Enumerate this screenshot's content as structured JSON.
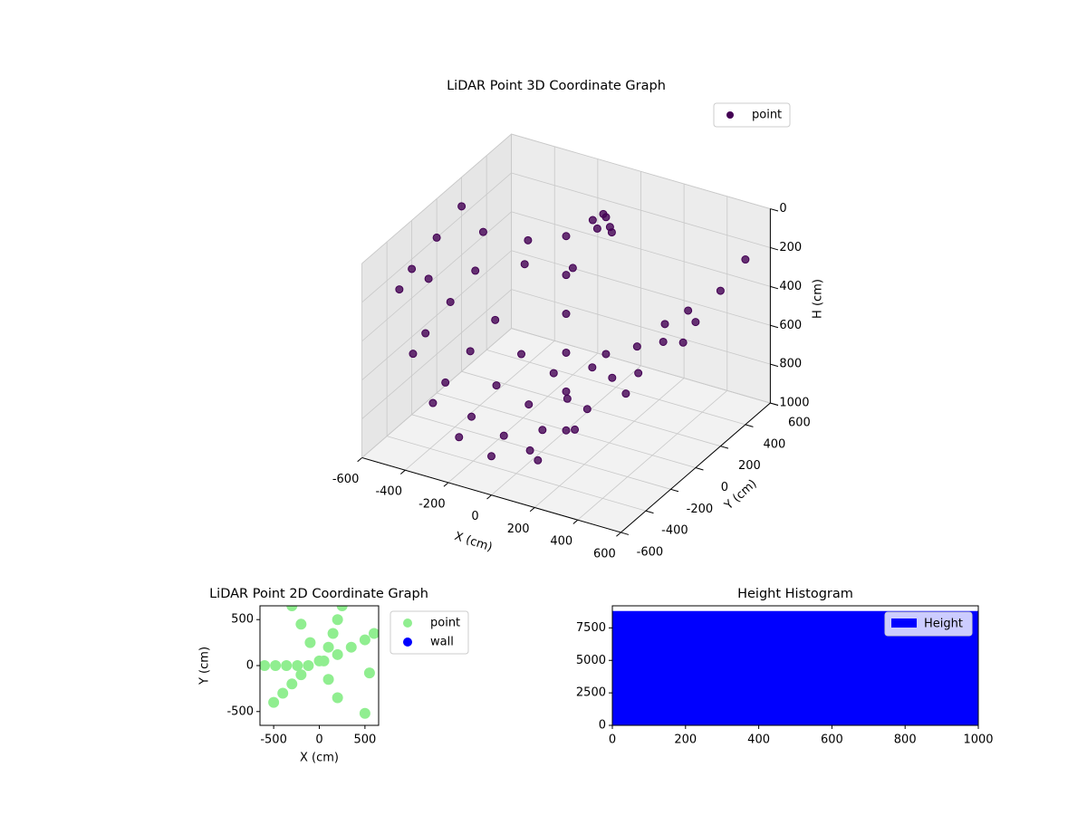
{
  "chart_data": [
    {
      "type": "scatter3d",
      "title": "LiDAR Point 3D Coordinate Graph",
      "xlabel": "X (cm)",
      "ylabel": "Y (cm)",
      "zlabel": "H (cm)",
      "xlim": [
        -600,
        600
      ],
      "ylim": [
        -600,
        600
      ],
      "zlim": [
        1000,
        0
      ],
      "xticks": [
        -600,
        -400,
        -200,
        0,
        200,
        400,
        600
      ],
      "yticks": [
        -600,
        -400,
        -200,
        0,
        200,
        400,
        600
      ],
      "zticks": [
        0,
        200,
        400,
        600,
        800,
        1000
      ],
      "grid": true,
      "legend": "upper right",
      "series": [
        {
          "name": "point",
          "color": "#440154",
          "x": [
            -600,
            -450,
            -300,
            -150,
            0,
            150,
            300,
            450,
            600,
            -600,
            -450,
            -300,
            -150,
            0,
            150,
            300,
            450,
            600,
            -600,
            -450,
            -300,
            -150,
            0,
            150,
            300,
            450,
            600,
            -600,
            -450,
            -300,
            -150,
            0,
            150,
            300,
            450,
            600,
            0,
            0,
            0,
            0,
            0,
            0,
            -50,
            0,
            50,
            -30,
            30,
            0,
            -580,
            -500,
            -350,
            -250,
            300,
            400,
            -200,
            100
          ],
          "y": [
            -300,
            -450,
            -550,
            -600,
            -600,
            -550,
            -450,
            -300,
            -100,
            -200,
            -350,
            -450,
            -500,
            -500,
            -450,
            -350,
            -200,
            0,
            0,
            -150,
            -250,
            -300,
            -300,
            -250,
            -150,
            0,
            200,
            200,
            50,
            -50,
            -100,
            -100,
            -50,
            50,
            200,
            400,
            0,
            0,
            0,
            0,
            0,
            0,
            300,
            320,
            280,
            350,
            300,
            250,
            -100,
            200,
            300,
            100,
            -200,
            100,
            400,
            -400
          ],
          "z": [
            300,
            500,
            650,
            750,
            800,
            750,
            650,
            500,
            300,
            250,
            450,
            600,
            700,
            750,
            700,
            600,
            450,
            250,
            200,
            400,
            550,
            650,
            700,
            650,
            550,
            400,
            200,
            150,
            350,
            500,
            600,
            650,
            600,
            500,
            350,
            150,
            0,
            200,
            400,
            600,
            800,
            1000,
            100,
            80,
            120,
            90,
            110,
            100,
            350,
            250,
            300,
            280,
            400,
            380,
            450,
            900
          ]
        }
      ]
    },
    {
      "type": "scatter",
      "title": "LiDAR Point 2D Coordinate Graph",
      "xlabel": "X (cm)",
      "ylabel": "Y (cm)",
      "xlim": [
        -650,
        650
      ],
      "ylim": [
        -650,
        650
      ],
      "xticks": [
        -500,
        0,
        500
      ],
      "yticks": [
        -500,
        0,
        500
      ],
      "legend": "outside right",
      "series": [
        {
          "name": "point",
          "color": "#90ee90",
          "x": [
            -600,
            -480,
            -360,
            -240,
            -120,
            -300,
            -200,
            -100,
            0,
            100,
            200,
            100,
            150,
            200,
            250,
            50,
            200,
            350,
            500,
            600,
            -500,
            -400,
            -300,
            -200,
            550,
            500
          ],
          "y": [
            0,
            0,
            0,
            0,
            0,
            650,
            450,
            250,
            50,
            -150,
            -350,
            200,
            350,
            500,
            650,
            50,
            120,
            200,
            280,
            350,
            -400,
            -300,
            -200,
            -100,
            -80,
            -520
          ]
        },
        {
          "name": "wall",
          "color": "#0000ff",
          "x": [],
          "y": []
        }
      ]
    },
    {
      "type": "histogram",
      "title": "Height Histogram",
      "xlim": [
        0,
        1000
      ],
      "ylim": [
        0,
        9200
      ],
      "xticks": [
        0,
        200,
        400,
        600,
        800,
        1000
      ],
      "yticks": [
        0,
        2500,
        5000,
        7500
      ],
      "legend": "upper right",
      "series": [
        {
          "name": "Height",
          "color": "#0000ff",
          "bins": [
            0,
            1000
          ],
          "counts": [
            8800
          ]
        }
      ]
    }
  ]
}
